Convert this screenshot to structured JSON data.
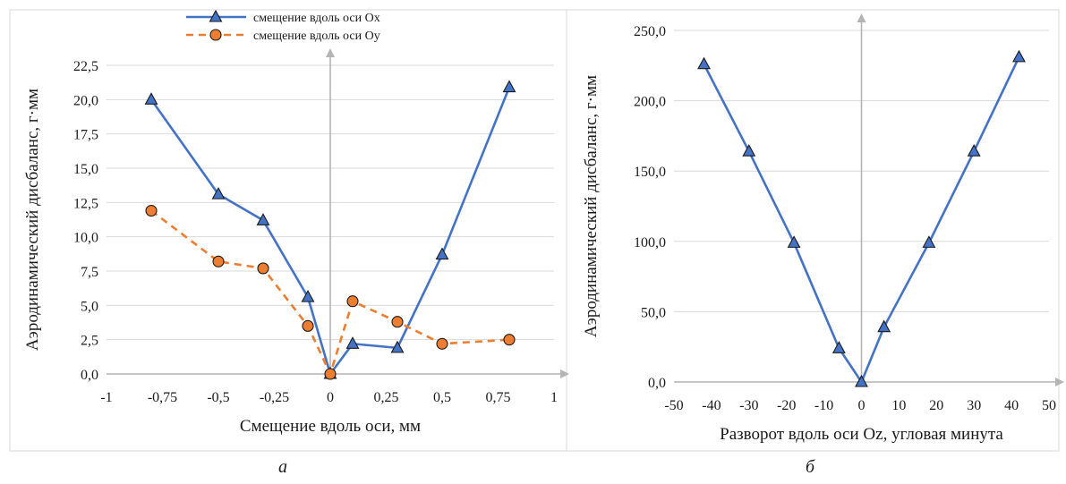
{
  "chart_data": [
    {
      "type": "line",
      "caption": "а",
      "xlabel": "Смещение вдоль оси, мм",
      "ylabel": "Аэродинамический дисбаланс, г·мм",
      "xlim": [
        -1,
        1
      ],
      "ylim": [
        0,
        22.5
      ],
      "xticks": [
        -1,
        -0.75,
        -0.5,
        -0.25,
        0,
        0.25,
        0.5,
        0.75,
        1
      ],
      "xtick_labels": [
        "-1",
        "-0,75",
        "-0,5",
        "-0,25",
        "0",
        "0,25",
        "0,5",
        "0,75",
        "1"
      ],
      "yticks": [
        0,
        2.5,
        5,
        7.5,
        10,
        12.5,
        15,
        17.5,
        20,
        22.5
      ],
      "ytick_labels": [
        "0,0",
        "2,5",
        "5,0",
        "7,5",
        "10,0",
        "12,5",
        "15,0",
        "17,5",
        "20,0",
        "22,5"
      ],
      "grid": "horizontal",
      "legend_position": "top",
      "series": [
        {
          "name": "смещение вдоль оси Ox",
          "color": "#4472C4",
          "marker": "triangle",
          "dashed": false,
          "x": [
            -0.8,
            -0.5,
            -0.3,
            -0.1,
            0,
            0.1,
            0.3,
            0.5,
            0.8
          ],
          "y": [
            20.0,
            13.1,
            11.2,
            5.6,
            0.0,
            2.2,
            1.9,
            8.7,
            20.9
          ]
        },
        {
          "name": "смещение вдоль оси Oy",
          "color": "#ED7D31",
          "marker": "circle",
          "dashed": true,
          "x": [
            -0.8,
            -0.5,
            -0.3,
            -0.1,
            0,
            0.1,
            0.3,
            0.5,
            0.8
          ],
          "y": [
            11.9,
            8.2,
            7.7,
            3.5,
            0.0,
            5.3,
            3.8,
            2.2,
            2.5
          ]
        }
      ]
    },
    {
      "type": "line",
      "caption": "б",
      "xlabel": "Разворот вдоль оси Oz, угловая минута",
      "ylabel": "Аэродинамический дисбаланс, г·мм",
      "xlim": [
        -50,
        50
      ],
      "ylim": [
        0,
        250
      ],
      "xticks": [
        -50,
        -40,
        -30,
        -20,
        -10,
        0,
        10,
        20,
        30,
        40,
        50
      ],
      "xtick_labels": [
        "-50",
        "-40",
        "-30",
        "-20",
        "-10",
        "0",
        "10",
        "20",
        "30",
        "40",
        "50"
      ],
      "yticks": [
        0,
        50,
        100,
        150,
        200,
        250
      ],
      "ytick_labels": [
        "0,0",
        "50,0",
        "100,0",
        "150,0",
        "200,0",
        "250,0"
      ],
      "grid": "horizontal",
      "series": [
        {
          "color": "#4472C4",
          "marker": "triangle",
          "dashed": false,
          "x": [
            -42,
            -30,
            -18,
            -6,
            0,
            6,
            18,
            30,
            42
          ],
          "y": [
            226,
            164,
            99,
            24,
            0,
            39,
            99,
            164,
            231
          ]
        }
      ]
    }
  ]
}
